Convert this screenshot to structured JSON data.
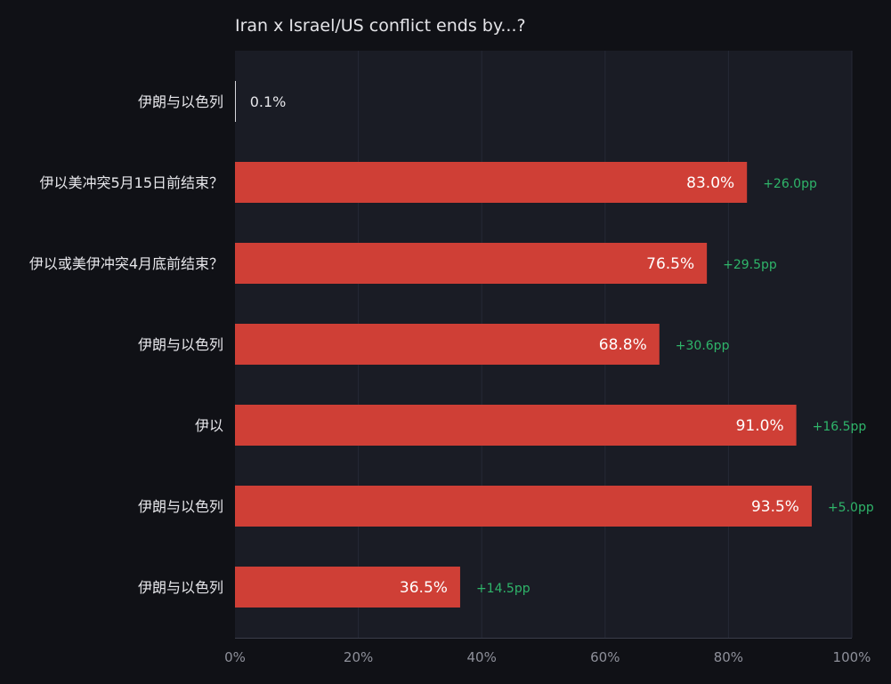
{
  "chart_data": {
    "type": "bar",
    "orientation": "horizontal",
    "title": "Iran x Israel/US conflict ends by...?",
    "categories": [
      "伊朗与以色列",
      "伊以美冲突5月15日前结束？",
      "伊以或美伊冲突4月底前结束？",
      "伊朗与以色列",
      "伊以",
      "伊朗与以色列",
      "伊朗与以色列"
    ],
    "values": [
      0.1,
      83.0,
      76.5,
      68.8,
      91.0,
      93.5,
      36.5
    ],
    "value_labels": [
      "0.1%",
      "83.0%",
      "76.5%",
      "68.8%",
      "91.0%",
      "93.5%",
      "36.5%"
    ],
    "deltas": [
      "",
      "+26.0pp",
      "+29.5pp",
      "+30.6pp",
      "+16.5pp",
      "+5.0pp",
      "+14.5pp"
    ],
    "xlim": [
      0,
      100
    ],
    "xticks": [
      0,
      20,
      40,
      60,
      80,
      100
    ],
    "xtick_labels": [
      "0%",
      "20%",
      "40%",
      "60%",
      "80%",
      "100%"
    ],
    "xlabel": "",
    "ylabel": "",
    "grid": true,
    "legend": "none",
    "colors": {
      "bar": "#cf3f36",
      "delta": "#2fb56a",
      "background": "#101116",
      "plot_background": "#1a1c25"
    }
  }
}
